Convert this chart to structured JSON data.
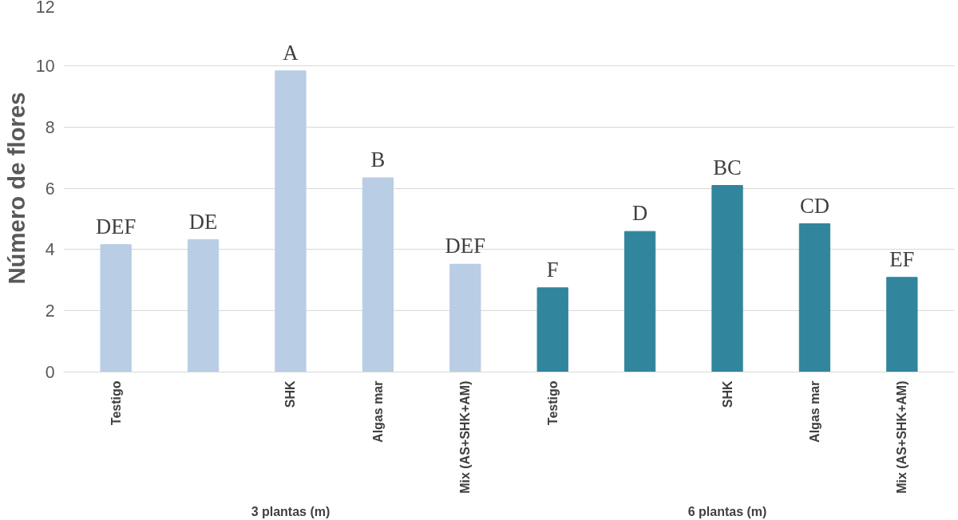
{
  "chart_data": {
    "type": "bar",
    "ylabel": "Número de flores",
    "categories": [
      "Testigo",
      null,
      "SHK",
      "Algas mar",
      "Mix (AS+SHK+AM)",
      "Testigo",
      null,
      "SHK",
      "Algas mar",
      "Mix (AS+SHK+AM)"
    ],
    "values": [
      4.16,
      4.32,
      9.83,
      6.34,
      3.52,
      2.75,
      4.59,
      6.09,
      4.84,
      3.09
    ],
    "colors": [
      "#b9cde5",
      "#b9cde5",
      "#b9cde5",
      "#b9cde5",
      "#b9cde5",
      "#31859c",
      "#31859c",
      "#31859c",
      "#31859c",
      "#31859c"
    ],
    "value_labels": [
      "DEF",
      "DE",
      "A",
      "B",
      "DEF",
      "F",
      "D",
      "BC",
      "CD",
      "EF"
    ],
    "annotations": [
      "3 plantas (m)",
      "6 plantas (m)"
    ],
    "ylim": [
      0,
      12
    ],
    "yticks": [
      0,
      2,
      4,
      6,
      8,
      10,
      12
    ],
    "grid": "y"
  }
}
